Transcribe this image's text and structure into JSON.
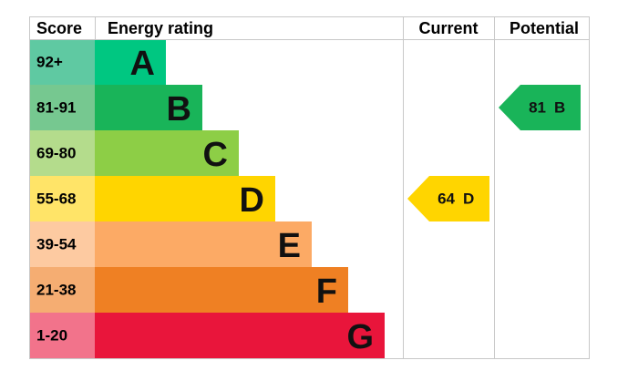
{
  "chart_data": {
    "type": "epc",
    "headers": {
      "score": "Score",
      "rating": "Energy rating",
      "current": "Current",
      "potential": "Potential"
    },
    "bands": [
      {
        "score": "92+",
        "letter": "A",
        "color": "#00c781",
        "score_color": "#5fc9a2"
      },
      {
        "score": "81-91",
        "letter": "B",
        "color": "#19b459",
        "score_color": "#76c890"
      },
      {
        "score": "69-80",
        "letter": "C",
        "color": "#8dce46",
        "score_color": "#b4dc8c"
      },
      {
        "score": "55-68",
        "letter": "D",
        "color": "#ffd500",
        "score_color": "#ffe468"
      },
      {
        "score": "39-54",
        "letter": "E",
        "color": "#fcaa65",
        "score_color": "#fdcaa1"
      },
      {
        "score": "21-38",
        "letter": "F",
        "color": "#ef8023",
        "score_color": "#f5ad72"
      },
      {
        "score": "1-20",
        "letter": "G",
        "color": "#e9153b",
        "score_color": "#f2738b"
      }
    ],
    "current": {
      "value": 64,
      "letter": "D"
    },
    "potential": {
      "value": 81,
      "letter": "B"
    }
  }
}
